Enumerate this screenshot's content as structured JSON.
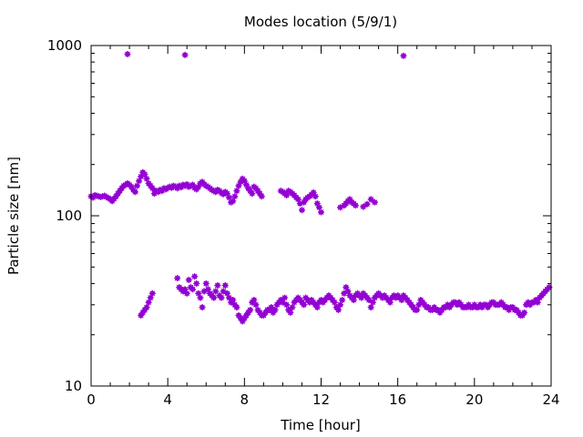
{
  "chart_data": {
    "type": "scatter",
    "title": "Modes location (5/9/1)",
    "xlabel": "Time [hour]",
    "ylabel": "Particle size [nm]",
    "xlim": [
      0,
      24
    ],
    "ylim": [
      10,
      1000
    ],
    "yscale": "log",
    "grid": false,
    "legend": "none",
    "marker_color": "#9400d3",
    "x_ticks": [
      0,
      4,
      8,
      12,
      16,
      20,
      24
    ],
    "x_tick_labels": [
      "0",
      "4",
      "8",
      "12",
      "16",
      "20",
      "24"
    ],
    "y_ticks": [
      10,
      100,
      1000
    ],
    "y_tick_labels": [
      "10",
      "100",
      "1000"
    ],
    "series": [
      {
        "points": [
          [
            0.0,
            130
          ],
          [
            0.1,
            128
          ],
          [
            0.2,
            132
          ],
          [
            0.3,
            131
          ],
          [
            0.4,
            130
          ],
          [
            0.5,
            129
          ],
          [
            0.6,
            130
          ],
          [
            0.7,
            131
          ],
          [
            0.8,
            129
          ],
          [
            0.9,
            127
          ],
          [
            1.0,
            125
          ],
          [
            1.1,
            122
          ],
          [
            1.2,
            126
          ],
          [
            1.3,
            130
          ],
          [
            1.4,
            135
          ],
          [
            1.5,
            140
          ],
          [
            1.6,
            145
          ],
          [
            1.7,
            150
          ],
          [
            1.8,
            152
          ],
          [
            1.9,
            155
          ],
          [
            2.0,
            152
          ],
          [
            2.1,
            148
          ],
          [
            2.2,
            142
          ],
          [
            2.3,
            138
          ],
          [
            2.4,
            150
          ],
          [
            2.5,
            160
          ],
          [
            2.6,
            170
          ],
          [
            2.7,
            180
          ],
          [
            2.8,
            175
          ],
          [
            2.9,
            165
          ],
          [
            3.0,
            155
          ],
          [
            3.1,
            150
          ],
          [
            3.2,
            145
          ],
          [
            3.3,
            135
          ],
          [
            3.4,
            140
          ],
          [
            3.5,
            138
          ],
          [
            3.6,
            142
          ],
          [
            3.7,
            140
          ],
          [
            3.8,
            145
          ],
          [
            3.9,
            143
          ],
          [
            4.0,
            146
          ],
          [
            4.1,
            148
          ],
          [
            4.2,
            146
          ],
          [
            4.3,
            150
          ],
          [
            4.4,
            148
          ],
          [
            4.5,
            145
          ],
          [
            4.6,
            150
          ],
          [
            4.7,
            147
          ],
          [
            4.8,
            152
          ],
          [
            4.9,
            150
          ],
          [
            5.0,
            153
          ],
          [
            5.1,
            148
          ],
          [
            5.2,
            150
          ],
          [
            5.3,
            152
          ],
          [
            5.4,
            146
          ],
          [
            5.5,
            143
          ],
          [
            5.6,
            148
          ],
          [
            5.7,
            155
          ],
          [
            5.8,
            158
          ],
          [
            5.9,
            153
          ],
          [
            6.0,
            150
          ],
          [
            6.1,
            148
          ],
          [
            6.2,
            145
          ],
          [
            6.3,
            142
          ],
          [
            6.4,
            140
          ],
          [
            6.5,
            138
          ],
          [
            6.6,
            142
          ],
          [
            6.7,
            140
          ],
          [
            6.8,
            136
          ],
          [
            6.9,
            134
          ],
          [
            7.0,
            138
          ],
          [
            7.1,
            135
          ],
          [
            7.2,
            128
          ],
          [
            7.3,
            120
          ],
          [
            7.4,
            122
          ],
          [
            7.5,
            130
          ],
          [
            7.6,
            140
          ],
          [
            7.7,
            150
          ],
          [
            7.8,
            158
          ],
          [
            7.9,
            165
          ],
          [
            8.0,
            160
          ],
          [
            8.1,
            152
          ],
          [
            8.2,
            145
          ],
          [
            8.3,
            140
          ],
          [
            8.4,
            135
          ],
          [
            8.5,
            148
          ],
          [
            8.6,
            145
          ],
          [
            8.7,
            140
          ],
          [
            8.8,
            135
          ],
          [
            8.9,
            130
          ],
          [
            9.9,
            140
          ],
          [
            10.0,
            138
          ],
          [
            10.1,
            135
          ],
          [
            10.2,
            132
          ],
          [
            10.3,
            140
          ],
          [
            10.4,
            138
          ],
          [
            10.5,
            135
          ],
          [
            10.6,
            132
          ],
          [
            10.7,
            128
          ],
          [
            10.8,
            125
          ],
          [
            10.9,
            118
          ],
          [
            11.0,
            108
          ],
          [
            11.1,
            120
          ],
          [
            11.2,
            125
          ],
          [
            11.3,
            128
          ],
          [
            11.4,
            130
          ],
          [
            11.5,
            133
          ],
          [
            11.6,
            137
          ],
          [
            11.7,
            130
          ],
          [
            11.8,
            118
          ],
          [
            11.9,
            112
          ],
          [
            12.0,
            105
          ],
          [
            13.0,
            112
          ],
          [
            13.2,
            115
          ],
          [
            13.3,
            118
          ],
          [
            13.4,
            122
          ],
          [
            13.5,
            125
          ],
          [
            13.6,
            120
          ],
          [
            13.7,
            118
          ],
          [
            13.8,
            115
          ],
          [
            14.2,
            113
          ],
          [
            14.4,
            117
          ],
          [
            14.6,
            125
          ],
          [
            14.8,
            120
          ],
          [
            1.9,
            890
          ],
          [
            4.9,
            880
          ],
          [
            16.3,
            870
          ],
          [
            2.6,
            26
          ],
          [
            2.7,
            27
          ],
          [
            2.8,
            28
          ],
          [
            2.9,
            29
          ],
          [
            3.0,
            31
          ],
          [
            3.1,
            33
          ],
          [
            3.2,
            35
          ],
          [
            4.5,
            43
          ],
          [
            4.6,
            38
          ],
          [
            4.7,
            37
          ],
          [
            4.8,
            36
          ],
          [
            4.9,
            37
          ],
          [
            5.0,
            35
          ],
          [
            5.1,
            42
          ],
          [
            5.2,
            38
          ],
          [
            5.3,
            37
          ],
          [
            5.4,
            44
          ],
          [
            5.5,
            40
          ],
          [
            5.6,
            35
          ],
          [
            5.7,
            33
          ],
          [
            5.8,
            29
          ],
          [
            5.9,
            36
          ],
          [
            6.0,
            40
          ],
          [
            6.1,
            37
          ],
          [
            6.2,
            35
          ],
          [
            6.3,
            34
          ],
          [
            6.4,
            33
          ],
          [
            6.5,
            36
          ],
          [
            6.6,
            39
          ],
          [
            6.7,
            34
          ],
          [
            6.8,
            33
          ],
          [
            6.9,
            36
          ],
          [
            7.0,
            39
          ],
          [
            7.1,
            35
          ],
          [
            7.2,
            33
          ],
          [
            7.3,
            31
          ],
          [
            7.4,
            32
          ],
          [
            7.5,
            30
          ],
          [
            7.6,
            29
          ],
          [
            7.7,
            26
          ],
          [
            7.8,
            25
          ],
          [
            7.9,
            24
          ],
          [
            8.0,
            25
          ],
          [
            8.1,
            26
          ],
          [
            8.2,
            27
          ],
          [
            8.3,
            28
          ],
          [
            8.4,
            31
          ],
          [
            8.5,
            32
          ],
          [
            8.6,
            30
          ],
          [
            8.7,
            28
          ],
          [
            8.8,
            27
          ],
          [
            8.9,
            26
          ],
          [
            9.0,
            26
          ],
          [
            9.1,
            27
          ],
          [
            9.2,
            28
          ],
          [
            9.3,
            28
          ],
          [
            9.4,
            29
          ],
          [
            9.5,
            27
          ],
          [
            9.6,
            28
          ],
          [
            9.7,
            30
          ],
          [
            9.8,
            31
          ],
          [
            9.9,
            32
          ],
          [
            10.0,
            31
          ],
          [
            10.1,
            33
          ],
          [
            10.2,
            30
          ],
          [
            10.3,
            28
          ],
          [
            10.4,
            27
          ],
          [
            10.5,
            29
          ],
          [
            10.6,
            31
          ],
          [
            10.7,
            32
          ],
          [
            10.8,
            33
          ],
          [
            10.9,
            32
          ],
          [
            11.0,
            31
          ],
          [
            11.1,
            30
          ],
          [
            11.2,
            33
          ],
          [
            11.3,
            32
          ],
          [
            11.4,
            31
          ],
          [
            11.5,
            32
          ],
          [
            11.6,
            31
          ],
          [
            11.7,
            30
          ],
          [
            11.8,
            29
          ],
          [
            11.9,
            31
          ],
          [
            12.0,
            32
          ],
          [
            12.1,
            31
          ],
          [
            12.2,
            32
          ],
          [
            12.3,
            33
          ],
          [
            12.4,
            34
          ],
          [
            12.5,
            33
          ],
          [
            12.6,
            32
          ],
          [
            12.7,
            31
          ],
          [
            12.8,
            29
          ],
          [
            12.9,
            28
          ],
          [
            13.0,
            30
          ],
          [
            13.1,
            32
          ],
          [
            13.2,
            35
          ],
          [
            13.3,
            38
          ],
          [
            13.4,
            36
          ],
          [
            13.5,
            34
          ],
          [
            13.6,
            33
          ],
          [
            13.7,
            32
          ],
          [
            13.8,
            34
          ],
          [
            13.9,
            35
          ],
          [
            14.0,
            34
          ],
          [
            14.1,
            33
          ],
          [
            14.2,
            35
          ],
          [
            14.3,
            34
          ],
          [
            14.4,
            33
          ],
          [
            14.5,
            32
          ],
          [
            14.6,
            29
          ],
          [
            14.7,
            31
          ],
          [
            14.8,
            33
          ],
          [
            14.9,
            34
          ],
          [
            15.0,
            35
          ],
          [
            15.1,
            34
          ],
          [
            15.2,
            33
          ],
          [
            15.3,
            34
          ],
          [
            15.4,
            33
          ],
          [
            15.5,
            32
          ],
          [
            15.6,
            31
          ],
          [
            15.7,
            33
          ],
          [
            15.8,
            34
          ],
          [
            15.9,
            33
          ],
          [
            16.0,
            34
          ],
          [
            16.1,
            33
          ],
          [
            16.2,
            32
          ],
          [
            16.3,
            34
          ],
          [
            16.4,
            33
          ],
          [
            16.5,
            32
          ],
          [
            16.6,
            31
          ],
          [
            16.7,
            30
          ],
          [
            16.8,
            29
          ],
          [
            16.9,
            28
          ],
          [
            17.0,
            28
          ],
          [
            17.1,
            30
          ],
          [
            17.2,
            32
          ],
          [
            17.3,
            31
          ],
          [
            17.4,
            30
          ],
          [
            17.5,
            29
          ],
          [
            17.6,
            29
          ],
          [
            17.7,
            28
          ],
          [
            17.8,
            28
          ],
          [
            17.9,
            29
          ],
          [
            18.0,
            28
          ],
          [
            18.1,
            28
          ],
          [
            18.2,
            27
          ],
          [
            18.3,
            28
          ],
          [
            18.4,
            29
          ],
          [
            18.5,
            29
          ],
          [
            18.6,
            30
          ],
          [
            18.7,
            29
          ],
          [
            18.8,
            30
          ],
          [
            18.9,
            31
          ],
          [
            19.0,
            31
          ],
          [
            19.1,
            30
          ],
          [
            19.2,
            31
          ],
          [
            19.3,
            30
          ],
          [
            19.4,
            29
          ],
          [
            19.5,
            29
          ],
          [
            19.6,
            29
          ],
          [
            19.7,
            30
          ],
          [
            19.8,
            29
          ],
          [
            19.9,
            29
          ],
          [
            20.0,
            30
          ],
          [
            20.1,
            29
          ],
          [
            20.2,
            29
          ],
          [
            20.3,
            30
          ],
          [
            20.4,
            29
          ],
          [
            20.5,
            30
          ],
          [
            20.6,
            30
          ],
          [
            20.7,
            29
          ],
          [
            20.8,
            30
          ],
          [
            20.9,
            31
          ],
          [
            21.0,
            31
          ],
          [
            21.1,
            30
          ],
          [
            21.2,
            30
          ],
          [
            21.3,
            30
          ],
          [
            21.4,
            31
          ],
          [
            21.5,
            30
          ],
          [
            21.6,
            29
          ],
          [
            21.7,
            29
          ],
          [
            21.8,
            28
          ],
          [
            21.9,
            29
          ],
          [
            22.0,
            29
          ],
          [
            22.1,
            28
          ],
          [
            22.2,
            28
          ],
          [
            22.3,
            27
          ],
          [
            22.4,
            26
          ],
          [
            22.5,
            26
          ],
          [
            22.6,
            27
          ],
          [
            22.7,
            30
          ],
          [
            22.8,
            31
          ],
          [
            22.9,
            30
          ],
          [
            23.0,
            31
          ],
          [
            23.1,
            31
          ],
          [
            23.2,
            32
          ],
          [
            23.3,
            31
          ],
          [
            23.4,
            33
          ],
          [
            23.5,
            34
          ],
          [
            23.6,
            35
          ],
          [
            23.7,
            36
          ],
          [
            23.8,
            37
          ],
          [
            23.9,
            38
          ]
        ]
      }
    ]
  }
}
